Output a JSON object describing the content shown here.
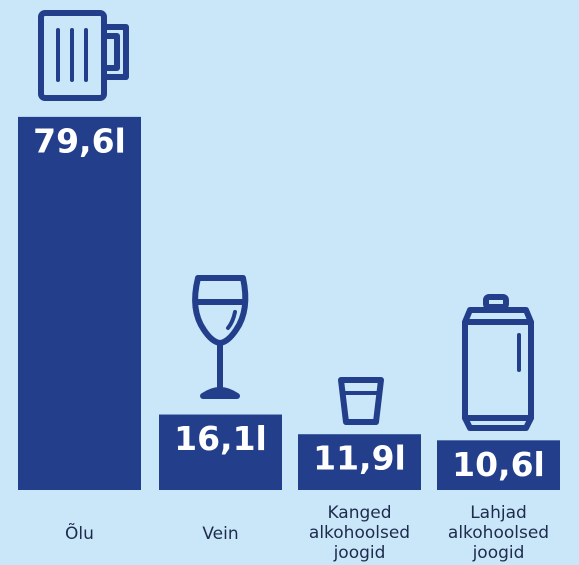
{
  "chart_data": {
    "type": "bar",
    "categories": [
      "Õlu",
      "Vein",
      "Kanged alkohoolsed joogid",
      "Lahjad alkohoolsed joogid"
    ],
    "values": [
      79.6,
      16.1,
      11.9,
      10.6
    ],
    "value_labels": [
      "79,6l",
      "16,1l",
      "11,9l",
      "10,6l"
    ],
    "color": "#233f8b",
    "ylim": [
      0,
      80
    ]
  }
}
